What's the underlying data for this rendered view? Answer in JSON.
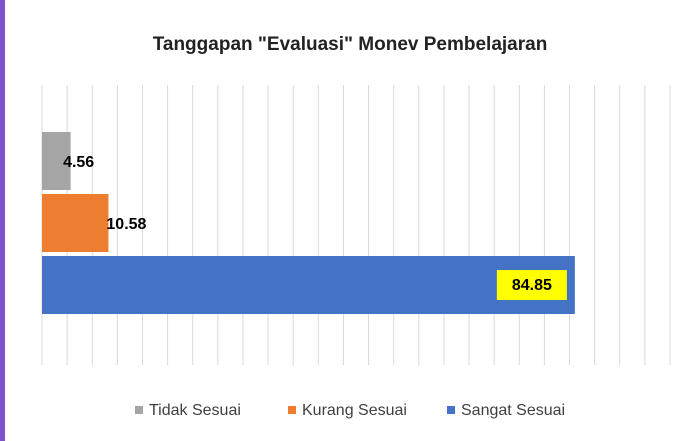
{
  "chart_data": {
    "type": "barh",
    "title": "Tanggapan \"Evaluasi\"  Monev Pembelajaran",
    "categories": [
      null
    ],
    "series": [
      {
        "name": "Tidak Sesuai",
        "color": "#a5a5a5",
        "values": [
          4.56
        ]
      },
      {
        "name": "Kurang Sesuai",
        "color": "#ed7d31",
        "values": [
          10.58
        ]
      },
      {
        "name": "Sangat Sesuai",
        "color": "#4472c4",
        "values": [
          84.85
        ],
        "label_background": "#ffff00"
      }
    ],
    "xlim": [
      0,
      100
    ],
    "xticks": [
      0,
      4,
      8,
      12,
      16,
      20,
      24,
      28,
      32,
      36,
      40,
      44,
      48,
      52,
      56,
      60,
      64,
      68,
      72,
      76,
      80,
      84,
      88,
      92,
      96,
      100
    ],
    "grid": true,
    "legend": "bottom"
  }
}
